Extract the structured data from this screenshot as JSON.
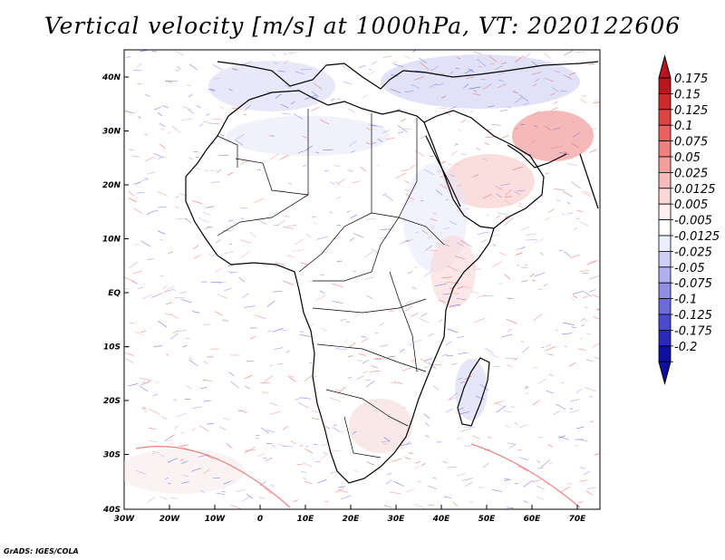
{
  "title": "Vertical velocity [m/s] at 1000hPa, VT: 2020122606",
  "credit": "GrADS: IGES/COLA",
  "lat_labels": [
    "40N",
    "30N",
    "20N",
    "10N",
    "EQ",
    "10S",
    "20S",
    "30S",
    "40S"
  ],
  "lon_labels": [
    "30W",
    "20W",
    "10W",
    "0",
    "10E",
    "20E",
    "30E",
    "40E",
    "50E",
    "60E",
    "70E"
  ],
  "colorbar": {
    "labels": [
      "0.175",
      "0.15",
      "0.125",
      "0.1",
      "0.075",
      "0.05",
      "0.025",
      "0.0125",
      "0.005",
      "-0.005",
      "-0.0125",
      "-0.025",
      "-0.05",
      "-0.075",
      "-0.1",
      "-0.125",
      "-0.175",
      "-0.2"
    ],
    "colors": [
      "#b8151e",
      "#cc2a2a",
      "#dd4444",
      "#e96060",
      "#ef8080",
      "#f29e9e",
      "#f6bcbc",
      "#f9d8d8",
      "#fdf0f0",
      "#ffffff",
      "#ececff",
      "#cfcff5",
      "#b0b0ee",
      "#8f8fe4",
      "#6c6cd8",
      "#4a4acb",
      "#2a2ab9",
      "#1010a0"
    ],
    "top_color": "#b8151e",
    "bottom_color": "#1010a0"
  },
  "colors": {
    "land_outline": "#000000",
    "positive": "#e05050",
    "negative": "#5050e0"
  }
}
